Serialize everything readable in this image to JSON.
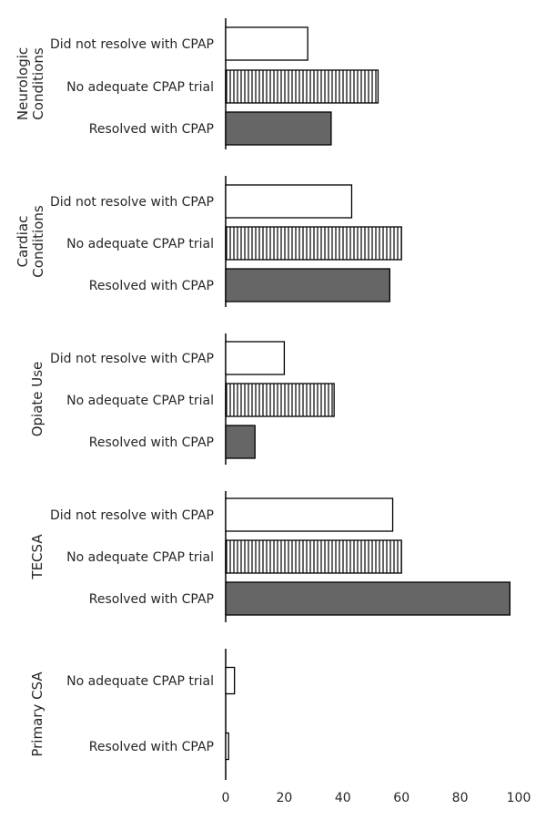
{
  "chart_data": {
    "type": "bar",
    "orientation": "horizontal",
    "xlim": [
      0,
      100
    ],
    "xticks": [
      0,
      20,
      40,
      60,
      80,
      100
    ],
    "grid": false,
    "fills": {
      "Did not resolve with CPAP": {
        "color": "#ffffff",
        "pattern": "none"
      },
      "No adequate CPAP trial": {
        "color": "#ffffff",
        "pattern": "vertical-lines"
      },
      "Resolved with CPAP": {
        "color": "#666666",
        "pattern": "none"
      }
    },
    "groups": [
      {
        "name": "Neurologic Conditions",
        "name_lines": [
          "Neurologic",
          "Conditions"
        ],
        "categories": [
          "Did not resolve with CPAP",
          "No adequate CPAP trial",
          "Resolved with CPAP"
        ],
        "values": [
          28,
          52,
          36
        ]
      },
      {
        "name": "Cardiac Conditions",
        "name_lines": [
          "Cardiac",
          "Conditions"
        ],
        "categories": [
          "Did not resolve with CPAP",
          "No adequate CPAP trial",
          "Resolved with CPAP"
        ],
        "values": [
          43,
          60,
          56
        ]
      },
      {
        "name": "Opiate Use",
        "name_lines": [
          "Opiate Use"
        ],
        "categories": [
          "Did not resolve with CPAP",
          "No adequate CPAP trial",
          "Resolved with CPAP"
        ],
        "values": [
          20,
          37,
          10
        ]
      },
      {
        "name": "TECSA",
        "name_lines": [
          "TECSA"
        ],
        "categories": [
          "Did not resolve with CPAP",
          "No adequate CPAP trial",
          "Resolved with CPAP"
        ],
        "values": [
          57,
          60,
          97
        ]
      },
      {
        "name": "Primary CSA",
        "name_lines": [
          "Primary CSA"
        ],
        "categories": [
          "No adequate CPAP trial",
          "Resolved with CPAP"
        ],
        "values": [
          3,
          1
        ],
        "fill_override": [
          "#ffffff",
          "#ffffff"
        ]
      }
    ]
  }
}
